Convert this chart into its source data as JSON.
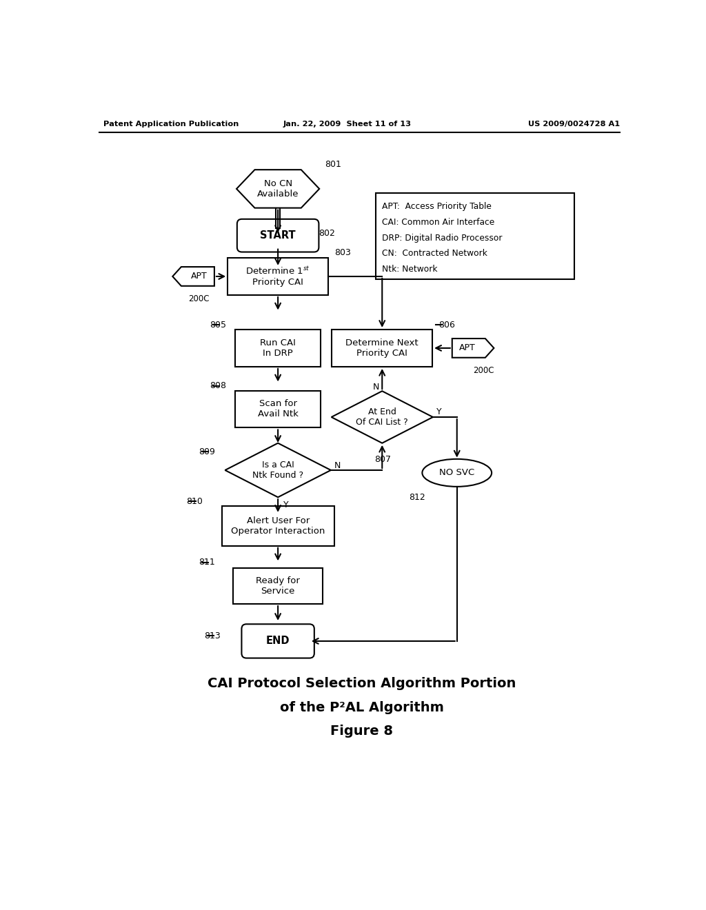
{
  "title_line1": "CAI Protocol Selection Algorithm Portion",
  "title_line2": "of the P²AL Algorithm",
  "title_line3": "Figure 8",
  "header_left": "Patent Application Publication",
  "header_mid": "Jan. 22, 2009  Sheet 11 of 13",
  "header_right": "US 2009/0024728 A1",
  "legend_lines": [
    "APT:  Access Priority Table",
    "CAI: Common Air Interface",
    "DRP: Digital Radio Processor",
    "CN:  Contracted Network",
    "Ntk: Network"
  ],
  "bg_color": "#ffffff"
}
